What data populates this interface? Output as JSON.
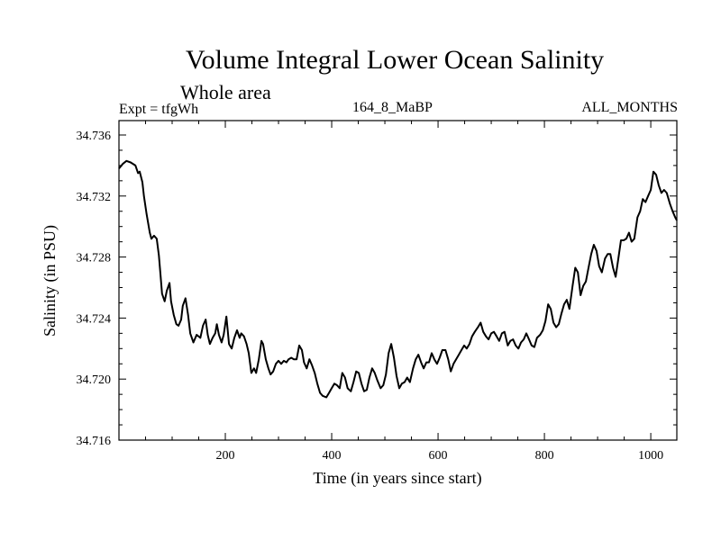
{
  "chart_data": {
    "type": "line",
    "title": "Volume Integral Lower Ocean Salinity",
    "subtitle": "Whole area",
    "annotations": {
      "left": "Expt = tfgWh",
      "center": "164_8_MaBP",
      "right": "ALL_MONTHS"
    },
    "xlabel": "Time (in years since start)",
    "ylabel": "Salinity (in PSU)",
    "xlim": [
      0,
      1049
    ],
    "ylim": [
      34.716,
      34.737
    ],
    "xticks": [
      200,
      400,
      600,
      800,
      1000
    ],
    "xtick_labels": [
      "200",
      "400",
      "600",
      "800",
      "1000"
    ],
    "yticks": [
      34.716,
      34.72,
      34.724,
      34.728,
      34.732,
      34.736
    ],
    "ytick_labels": [
      "34.716",
      "34.720",
      "34.724",
      "34.728",
      "34.732",
      "34.736"
    ],
    "grid": false,
    "series": [
      {
        "name": "Salinity",
        "color": "#000000",
        "x": [
          0,
          7,
          14,
          22,
          31,
          36,
          39,
          44,
          47,
          52,
          58,
          61,
          66,
          71,
          75,
          78,
          81,
          86,
          90,
          95,
          98,
          103,
          108,
          112,
          117,
          120,
          125,
          130,
          134,
          140,
          146,
          153,
          158,
          163,
          167,
          171,
          176,
          181,
          184,
          188,
          193,
          197,
          202,
          207,
          212,
          217,
          222,
          227,
          230,
          235,
          240,
          244,
          249,
          254,
          258,
          263,
          268,
          271,
          276,
          281,
          285,
          290,
          295,
          300,
          305,
          310,
          315,
          319,
          324,
          329,
          334,
          339,
          344,
          348,
          353,
          358,
          363,
          368,
          373,
          378,
          383,
          390,
          395,
          400,
          405,
          410,
          415,
          420,
          425,
          430,
          436,
          441,
          446,
          451,
          456,
          461,
          466,
          471,
          476,
          481,
          486,
          492,
          497,
          502,
          507,
          512,
          517,
          522,
          527,
          532,
          537,
          542,
          547,
          553,
          558,
          563,
          568,
          573,
          578,
          583,
          588,
          593,
          598,
          603,
          608,
          614,
          619,
          624,
          629,
          634,
          639,
          644,
          649,
          654,
          659,
          664,
          669,
          675,
          680,
          685,
          690,
          695,
          700,
          705,
          710,
          715,
          720,
          725,
          731,
          736,
          741,
          746,
          751,
          756,
          761,
          766,
          771,
          776,
          781,
          786,
          792,
          797,
          802,
          807,
          812,
          817,
          822,
          827,
          832,
          837,
          842,
          847,
          853,
          858,
          863,
          868,
          873,
          878,
          883,
          888,
          893,
          898,
          903,
          908,
          914,
          919,
          924,
          929,
          934,
          939,
          944,
          949,
          954,
          959,
          964,
          969,
          975,
          980,
          985,
          990,
          995,
          1000,
          1005,
          1010,
          1015,
          1020,
          1025,
          1030,
          1036,
          1041,
          1046,
          1049
        ],
        "y": [
          34.7338,
          34.7341,
          34.7343,
          34.7342,
          34.734,
          34.7335,
          34.7336,
          34.7329,
          34.732,
          34.7308,
          34.7296,
          34.7292,
          34.7294,
          34.7292,
          34.7281,
          34.7269,
          34.7256,
          34.7251,
          34.7258,
          34.7263,
          34.7251,
          34.7242,
          34.7236,
          34.7235,
          34.7239,
          34.7248,
          34.7253,
          34.7242,
          34.723,
          34.7224,
          34.7229,
          34.7227,
          34.7235,
          34.7239,
          34.7229,
          34.7223,
          34.7227,
          34.723,
          34.7236,
          34.7229,
          34.7224,
          34.7229,
          34.7241,
          34.7223,
          34.722,
          34.7227,
          34.7232,
          34.7227,
          34.723,
          34.7228,
          34.7223,
          34.7217,
          34.7204,
          34.7207,
          34.7204,
          34.7213,
          34.7225,
          34.7223,
          34.7213,
          34.7207,
          34.7203,
          34.7205,
          34.721,
          34.7212,
          34.721,
          34.7212,
          34.7211,
          34.7213,
          34.7214,
          34.7213,
          34.7213,
          34.7222,
          34.7219,
          34.7211,
          34.7207,
          34.7213,
          34.7209,
          34.7204,
          34.7197,
          34.7191,
          34.7189,
          34.7188,
          34.7191,
          34.7194,
          34.7197,
          34.7196,
          34.7194,
          34.7204,
          34.7201,
          34.7194,
          34.7192,
          34.7198,
          34.7205,
          34.7204,
          34.7197,
          34.7192,
          34.7193,
          34.7201,
          34.7207,
          34.7204,
          34.7199,
          34.7194,
          34.7196,
          34.7203,
          34.7217,
          34.7223,
          34.7214,
          34.7202,
          34.7194,
          34.7197,
          34.7198,
          34.7201,
          34.7198,
          34.7207,
          34.7213,
          34.7216,
          34.7211,
          34.7207,
          34.7211,
          34.7211,
          34.7217,
          34.7213,
          34.721,
          34.7214,
          34.7219,
          34.7219,
          34.7213,
          34.7205,
          34.721,
          34.7213,
          34.7216,
          34.7219,
          34.7222,
          34.722,
          34.7223,
          34.7228,
          34.7231,
          34.7234,
          34.7237,
          34.7231,
          34.7228,
          34.7226,
          34.723,
          34.7231,
          34.7228,
          34.7225,
          34.723,
          34.7231,
          34.7222,
          34.7225,
          34.7226,
          34.7222,
          34.722,
          34.7224,
          34.7226,
          34.723,
          34.7226,
          34.7222,
          34.7221,
          34.7227,
          34.7229,
          34.7232,
          34.7238,
          34.7249,
          34.7246,
          34.7237,
          34.7234,
          34.7236,
          34.7243,
          34.7249,
          34.7252,
          34.7246,
          34.7261,
          34.7273,
          34.727,
          34.7255,
          34.7261,
          34.7264,
          34.7273,
          34.7282,
          34.7288,
          34.7284,
          34.7274,
          34.727,
          34.7279,
          34.7282,
          34.7282,
          34.7273,
          34.7267,
          34.7279,
          34.7291,
          34.7291,
          34.7292,
          34.7296,
          34.729,
          34.7292,
          34.7306,
          34.731,
          34.7318,
          34.7316,
          34.732,
          34.7324,
          34.7336,
          34.7334,
          34.7327,
          34.7322,
          34.7324,
          34.7322,
          34.7315,
          34.731,
          34.7306,
          34.7304
        ]
      }
    ]
  }
}
